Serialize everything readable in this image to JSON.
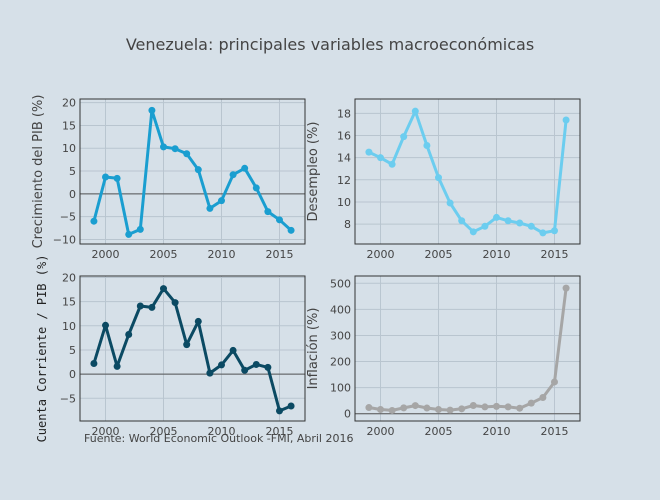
{
  "chart_data": {
    "title": "Venezuela: principales variables macroeconómicas",
    "source_note": "Fuente: World Economic Outlook -FMI, Abril 2016",
    "panels": [
      {
        "type": "line",
        "ylabel": "Crecimiento del PIB (%)",
        "color": "#1a9ed0",
        "x": [
          1999,
          2000,
          2001,
          2002,
          2003,
          2004,
          2005,
          2006,
          2007,
          2008,
          2009,
          2010,
          2011,
          2012,
          2013,
          2014,
          2015,
          2016
        ],
        "values": [
          -6.0,
          3.7,
          3.4,
          -8.9,
          -7.8,
          18.3,
          10.3,
          9.9,
          8.8,
          5.3,
          -3.2,
          -1.5,
          4.2,
          5.6,
          1.3,
          -3.9,
          -5.7,
          -8.0
        ],
        "xlim": [
          1997.8,
          2017.2
        ],
        "ylim": [
          -11,
          20.8
        ],
        "xticks": [
          2000,
          2005,
          2010,
          2015
        ],
        "yticks": [
          -10,
          -5,
          0,
          5,
          10,
          15,
          20
        ],
        "zero_line": true,
        "grid": true
      },
      {
        "type": "line",
        "ylabel": "Desempleo (%)",
        "color": "#6ccdef",
        "x": [
          1999,
          2000,
          2001,
          2002,
          2003,
          2004,
          2005,
          2006,
          2007,
          2008,
          2009,
          2010,
          2011,
          2012,
          2013,
          2014,
          2015,
          2016
        ],
        "values": [
          14.5,
          14.0,
          13.4,
          15.9,
          18.2,
          15.1,
          12.2,
          9.9,
          8.3,
          7.3,
          7.8,
          8.6,
          8.3,
          8.1,
          7.8,
          7.2,
          7.4,
          17.4
        ],
        "xlim": [
          1997.8,
          2017.2
        ],
        "ylim": [
          6.2,
          19.3
        ],
        "xticks": [
          2000,
          2005,
          2010,
          2015
        ],
        "yticks": [
          8,
          10,
          12,
          14,
          16,
          18
        ],
        "zero_line": false,
        "grid": true
      },
      {
        "type": "line",
        "ylabel": "Cuenta Corriente / PIB (%)",
        "color": "#0b4a63",
        "x": [
          1999,
          2000,
          2001,
          2002,
          2003,
          2004,
          2005,
          2006,
          2007,
          2008,
          2009,
          2010,
          2011,
          2012,
          2013,
          2014,
          2015,
          2016
        ],
        "values": [
          2.2,
          10.1,
          1.6,
          8.2,
          14.1,
          13.8,
          17.7,
          14.8,
          6.1,
          10.9,
          0.2,
          1.9,
          4.9,
          0.8,
          2.0,
          1.4,
          -7.6,
          -6.6
        ],
        "xlim": [
          1997.8,
          2017.2
        ],
        "ylim": [
          -9.7,
          20.3
        ],
        "xticks": [
          2000,
          2005,
          2010,
          2015
        ],
        "yticks": [
          -5,
          0,
          5,
          10,
          15,
          20
        ],
        "zero_line": true,
        "grid": true
      },
      {
        "type": "line",
        "ylabel": "Inflación (%)",
        "color": "#a6a6a6",
        "x": [
          1999,
          2000,
          2001,
          2002,
          2003,
          2004,
          2005,
          2006,
          2007,
          2008,
          2009,
          2010,
          2011,
          2012,
          2013,
          2014,
          2015,
          2016
        ],
        "values": [
          23.6,
          16.2,
          12.5,
          22.4,
          31.1,
          21.7,
          16.0,
          13.7,
          18.7,
          31.4,
          26.0,
          28.2,
          26.1,
          21.1,
          40.6,
          62.2,
          121.7,
          481.5
        ],
        "xlim": [
          1997.8,
          2017.2
        ],
        "ylim": [
          -28,
          528
        ],
        "xticks": [
          2000,
          2005,
          2010,
          2015
        ],
        "yticks": [
          0,
          100,
          200,
          300,
          400,
          500
        ],
        "zero_line": true,
        "grid": true
      }
    ]
  }
}
